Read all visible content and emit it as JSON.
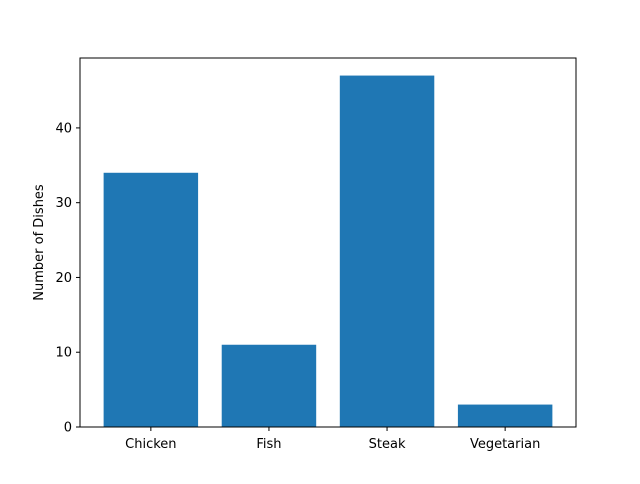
{
  "chart_data": {
    "type": "bar",
    "title": "",
    "xlabel": "",
    "ylabel": "Number of Dishes",
    "categories": [
      "Chicken",
      "Fish",
      "Steak",
      "Vegetarian"
    ],
    "values": [
      34,
      11,
      47,
      3
    ],
    "ylim": [
      0,
      49.35
    ],
    "yticks": [
      0,
      10,
      20,
      30,
      40
    ],
    "grid": false,
    "bar_color": "#1f77b4"
  }
}
